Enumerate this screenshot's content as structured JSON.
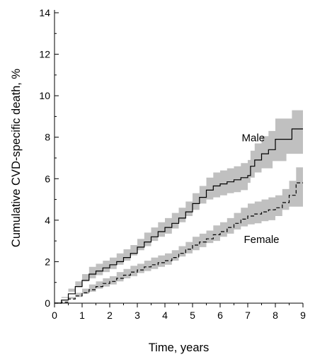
{
  "chart_data": {
    "type": "line",
    "xlabel": "Time, years",
    "ylabel": "Cumulative CVD-specific death, %",
    "xlim": [
      0,
      9
    ],
    "ylim": [
      0,
      14
    ],
    "xticks": [
      0,
      1,
      2,
      3,
      4,
      5,
      6,
      7,
      8,
      9
    ],
    "yticks": [
      0,
      2,
      4,
      6,
      8,
      10,
      12,
      14
    ],
    "grid": false,
    "series": [
      {
        "name": "Male",
        "line_style": "solid",
        "band_color": "#c0c0c0",
        "x": [
          0,
          0.25,
          0.5,
          0.75,
          1.0,
          1.25,
          1.5,
          1.75,
          2.0,
          2.25,
          2.5,
          2.75,
          3.0,
          3.25,
          3.5,
          3.75,
          4.0,
          4.25,
          4.5,
          4.75,
          5.0,
          5.25,
          5.5,
          5.75,
          6.0,
          6.25,
          6.5,
          6.75,
          7.0,
          7.1,
          7.25,
          7.5,
          7.75,
          7.9,
          8.0,
          8.2,
          8.4,
          8.6,
          8.75,
          9.0
        ],
        "y": [
          0,
          0.15,
          0.45,
          0.8,
          1.1,
          1.4,
          1.55,
          1.7,
          1.85,
          2.0,
          2.2,
          2.4,
          2.7,
          2.95,
          3.2,
          3.45,
          3.65,
          3.85,
          4.1,
          4.4,
          4.8,
          5.1,
          5.45,
          5.65,
          5.75,
          5.85,
          5.95,
          6.05,
          6.15,
          6.6,
          6.9,
          7.2,
          7.4,
          7.4,
          7.9,
          7.9,
          7.9,
          8.4,
          8.4,
          8.4
        ],
        "lower": [
          0,
          0.05,
          0.25,
          0.55,
          0.8,
          1.05,
          1.2,
          1.35,
          1.5,
          1.65,
          1.85,
          2.05,
          2.3,
          2.55,
          2.75,
          3.0,
          3.2,
          3.35,
          3.6,
          3.9,
          4.2,
          4.5,
          4.8,
          5.0,
          5.1,
          5.2,
          5.3,
          5.35,
          5.45,
          5.8,
          6.05,
          6.3,
          6.5,
          6.5,
          6.85,
          6.85,
          6.85,
          7.2,
          7.2,
          7.2
        ],
        "upper": [
          0,
          0.3,
          0.7,
          1.05,
          1.4,
          1.75,
          1.9,
          2.05,
          2.2,
          2.4,
          2.6,
          2.8,
          3.1,
          3.4,
          3.65,
          3.9,
          4.1,
          4.35,
          4.6,
          4.9,
          5.3,
          5.65,
          6.05,
          6.3,
          6.4,
          6.5,
          6.6,
          6.75,
          6.9,
          7.35,
          7.7,
          8.05,
          8.3,
          8.3,
          8.9,
          8.9,
          8.9,
          9.3,
          9.3,
          9.3
        ]
      },
      {
        "name": "Female",
        "line_style": "dashed",
        "band_color": "#c0c0c0",
        "x": [
          0,
          0.25,
          0.5,
          0.75,
          1.0,
          1.25,
          1.5,
          1.75,
          2.0,
          2.25,
          2.5,
          2.75,
          3.0,
          3.25,
          3.5,
          3.75,
          4.0,
          4.25,
          4.5,
          4.75,
          5.0,
          5.25,
          5.5,
          5.75,
          6.0,
          6.25,
          6.5,
          6.75,
          7.0,
          7.25,
          7.5,
          7.75,
          8.0,
          8.25,
          8.5,
          8.75,
          9.0
        ],
        "y": [
          0,
          0.05,
          0.2,
          0.35,
          0.5,
          0.65,
          0.8,
          0.95,
          1.05,
          1.2,
          1.35,
          1.5,
          1.6,
          1.75,
          1.85,
          1.95,
          2.05,
          2.2,
          2.4,
          2.6,
          2.8,
          2.95,
          3.1,
          3.3,
          3.45,
          3.65,
          3.85,
          4.05,
          4.2,
          4.3,
          4.4,
          4.5,
          4.6,
          4.85,
          5.2,
          5.8,
          5.8
        ],
        "lower": [
          0,
          0.0,
          0.1,
          0.2,
          0.3,
          0.45,
          0.55,
          0.7,
          0.8,
          0.9,
          1.05,
          1.2,
          1.3,
          1.45,
          1.55,
          1.65,
          1.75,
          1.85,
          2.05,
          2.25,
          2.4,
          2.55,
          2.7,
          2.9,
          3.0,
          3.2,
          3.35,
          3.55,
          3.7,
          3.8,
          3.85,
          3.95,
          4.0,
          4.2,
          4.5,
          4.65,
          4.65
        ],
        "upper": [
          0,
          0.1,
          0.3,
          0.5,
          0.7,
          0.9,
          1.05,
          1.2,
          1.3,
          1.5,
          1.65,
          1.8,
          1.9,
          2.05,
          2.2,
          2.3,
          2.4,
          2.55,
          2.75,
          2.95,
          3.2,
          3.35,
          3.5,
          3.75,
          3.9,
          4.1,
          4.35,
          4.6,
          4.8,
          4.9,
          5.0,
          5.1,
          5.2,
          5.5,
          5.9,
          6.55,
          6.55
        ]
      }
    ],
    "annotations": [
      {
        "text": "Male",
        "x": 7.2,
        "y": 7.8
      },
      {
        "text": "Female",
        "x": 7.5,
        "y": 2.9
      }
    ]
  }
}
